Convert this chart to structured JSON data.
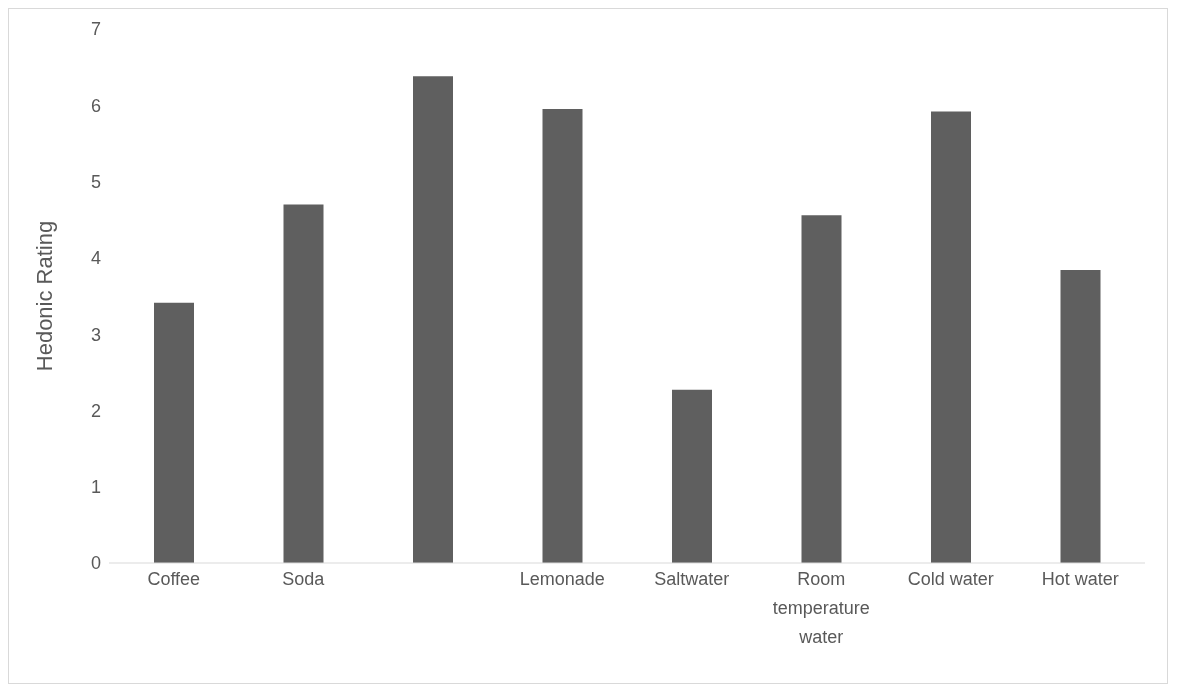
{
  "chart_data": {
    "type": "bar",
    "ylabel": "Hedonic Rating",
    "categories": [
      "Coffee",
      "Soda",
      null,
      "Lemonade",
      "Saltwater",
      "Room temperature water",
      "Cold water",
      "Hot water"
    ],
    "values": [
      3.41,
      4.7,
      6.38,
      5.95,
      2.27,
      4.56,
      5.92,
      3.84
    ],
    "color": "#5f5f5f",
    "ylim": [
      0,
      7
    ],
    "yticks": [
      0,
      1,
      2,
      3,
      4,
      5,
      6,
      7
    ],
    "grid": false
  }
}
